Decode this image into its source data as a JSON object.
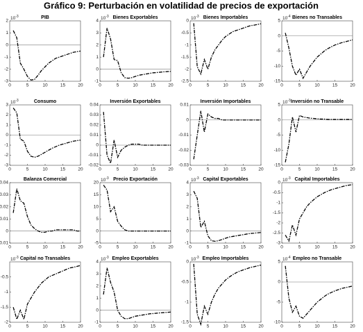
{
  "title": "Gráfico 9: Perturbación en volatilidad de precios de exportación",
  "chart_data": [
    {
      "type": "line",
      "title": "PIB",
      "scale_base": "10",
      "scale_exp": "-3",
      "zero_line": true,
      "color": "#000000",
      "x": [
        1,
        2,
        3,
        4,
        5,
        6,
        7,
        8,
        9,
        10,
        11,
        12,
        13,
        14,
        15,
        16,
        17,
        18,
        19,
        20
      ],
      "values": [
        1.2,
        0.6,
        -1.5,
        -2,
        -2.6,
        -2.9,
        -2.85,
        -2.5,
        -2.1,
        -1.8,
        -1.5,
        -1.3,
        -1.1,
        -1,
        -0.9,
        -0.8,
        -0.7,
        -0.6,
        -0.55,
        -0.5
      ],
      "xlim": [
        0,
        20
      ],
      "xticks": [
        0,
        5,
        10,
        15,
        20
      ],
      "ylim": [
        -3,
        2
      ],
      "yticks": [
        -3,
        -2,
        -1,
        0,
        1,
        2
      ]
    },
    {
      "type": "line",
      "title": "Bienes Exportables",
      "scale_base": "10",
      "scale_exp": "-3",
      "zero_line": true,
      "color": "#000000",
      "x": [
        1,
        2,
        3,
        4,
        5,
        6,
        7,
        8,
        9,
        10,
        11,
        12,
        13,
        14,
        15,
        16,
        17,
        18,
        19,
        20
      ],
      "values": [
        1,
        3.4,
        2.5,
        0.8,
        0.7,
        -0.3,
        -0.7,
        -0.75,
        -0.7,
        -0.6,
        -0.5,
        -0.45,
        -0.4,
        -0.35,
        -0.3,
        -0.28,
        -0.25,
        -0.22,
        -0.2,
        -0.18
      ],
      "xlim": [
        0,
        20
      ],
      "xticks": [
        0,
        5,
        10,
        15,
        20
      ],
      "ylim": [
        -1,
        4
      ],
      "yticks": [
        -1,
        0,
        1,
        2,
        3,
        4
      ]
    },
    {
      "type": "line",
      "title": "Bienes Importables",
      "scale_base": "10",
      "scale_exp": "-3",
      "zero_line": true,
      "color": "#000000",
      "x": [
        1,
        2,
        3,
        4,
        5,
        6,
        7,
        8,
        9,
        10,
        11,
        12,
        13,
        14,
        15,
        16,
        17,
        18,
        19,
        20
      ],
      "values": [
        -0.1,
        -1.9,
        -2.2,
        -1.6,
        -2,
        -1.5,
        -1.2,
        -1,
        -0.8,
        -0.65,
        -0.55,
        -0.45,
        -0.4,
        -0.35,
        -0.3,
        -0.25,
        -0.2,
        -0.18,
        -0.15,
        -0.12
      ],
      "xlim": [
        0,
        20
      ],
      "xticks": [
        0,
        5,
        10,
        15,
        20
      ],
      "ylim": [
        -2.5,
        0
      ],
      "yticks": [
        -2.5,
        -2,
        -1.5,
        -1,
        -0.5,
        0
      ]
    },
    {
      "type": "line",
      "title": "Bienes no Transables",
      "scale_base": "10",
      "scale_exp": "-4",
      "zero_line": true,
      "color": "#000000",
      "x": [
        1,
        2,
        3,
        4,
        5,
        6,
        7,
        8,
        9,
        10,
        11,
        12,
        13,
        14,
        15,
        16,
        17,
        18,
        19,
        20
      ],
      "values": [
        1,
        -4,
        -10,
        -13,
        -11,
        -14,
        -12,
        -10,
        -8.5,
        -7,
        -6,
        -5,
        -4.2,
        -3.6,
        -3,
        -2.6,
        -2.2,
        -1.9,
        -1.6,
        -1.3
      ],
      "xlim": [
        0,
        20
      ],
      "xticks": [
        0,
        5,
        10,
        15,
        20
      ],
      "ylim": [
        -15,
        5
      ],
      "yticks": [
        -15,
        -10,
        -5,
        0,
        5
      ]
    },
    {
      "type": "line",
      "title": "Consumo",
      "scale_base": "10",
      "scale_exp": "-3",
      "zero_line": true,
      "color": "#000000",
      "x": [
        1,
        2,
        3,
        4,
        5,
        6,
        7,
        8,
        9,
        10,
        11,
        12,
        13,
        14,
        15,
        16,
        17,
        18,
        19,
        20
      ],
      "values": [
        2.7,
        2.2,
        -0.4,
        -0.6,
        -1.6,
        -2.1,
        -2.2,
        -2.1,
        -1.9,
        -1.7,
        -1.5,
        -1.3,
        -1.15,
        -1,
        -0.9,
        -0.8,
        -0.7,
        -0.6,
        -0.55,
        -0.5
      ],
      "xlim": [
        0,
        20
      ],
      "xticks": [
        0,
        5,
        10,
        15,
        20
      ],
      "ylim": [
        -3,
        3
      ],
      "yticks": [
        -3,
        -2,
        -1,
        0,
        1,
        2,
        3
      ]
    },
    {
      "type": "line",
      "title": "Inversión Exportables",
      "zero_line": true,
      "color": "#000000",
      "x": [
        1,
        2,
        3,
        4,
        5,
        6,
        7,
        8,
        9,
        10,
        11,
        12,
        13,
        14,
        15,
        16,
        17,
        18,
        19,
        20
      ],
      "values": [
        0.033,
        -0.01,
        -0.018,
        0.005,
        -0.012,
        -0.005,
        -0.002,
        0,
        0.001,
        0.001,
        0.001,
        0,
        0,
        0,
        0,
        0,
        0,
        0,
        0,
        0
      ],
      "xlim": [
        0,
        20
      ],
      "xticks": [
        0,
        5,
        10,
        15,
        20
      ],
      "ylim": [
        -0.02,
        0.04
      ],
      "yticks": [
        -0.02,
        -0.01,
        0,
        0.01,
        0.02,
        0.03,
        0.04
      ]
    },
    {
      "type": "line",
      "title": "Inversión Importables",
      "zero_line": true,
      "color": "#000000",
      "x": [
        1,
        2,
        3,
        4,
        5,
        6,
        7,
        8,
        9,
        10,
        11,
        12,
        13,
        14,
        15,
        16,
        17,
        18,
        19,
        20
      ],
      "values": [
        -0.026,
        -0.01,
        0.006,
        -0.008,
        0.004,
        0.002,
        0.001,
        0.001,
        0,
        0,
        0,
        0,
        0,
        0,
        0,
        0,
        0,
        0,
        0,
        0
      ],
      "xlim": [
        0,
        20
      ],
      "xticks": [
        0,
        5,
        10,
        15,
        20
      ],
      "ylim": [
        -0.03,
        0.01
      ],
      "yticks": [
        -0.03,
        -0.02,
        -0.01,
        0,
        0.01
      ]
    },
    {
      "type": "line",
      "title": "Inversión no Transable",
      "scale_base": "10",
      "scale_exp": "-3",
      "zero_line": true,
      "color": "#000000",
      "x": [
        1,
        2,
        3,
        4,
        5,
        6,
        7,
        8,
        9,
        10,
        11,
        12,
        13,
        14,
        15,
        16,
        17,
        18,
        19,
        20
      ],
      "values": [
        -14,
        -8,
        1,
        -4,
        1.5,
        1,
        0.8,
        0.6,
        0.5,
        0.4,
        0.3,
        0.3,
        0.2,
        0.2,
        0.2,
        0.2,
        0.2,
        0.2,
        0.2,
        0.2
      ],
      "xlim": [
        0,
        20
      ],
      "xticks": [
        0,
        5,
        10,
        15,
        20
      ],
      "ylim": [
        -15,
        5
      ],
      "yticks": [
        -15,
        -10,
        -5,
        0,
        5
      ]
    },
    {
      "type": "line",
      "title": "Balanza Comercial",
      "zero_line": true,
      "color": "#000000",
      "x": [
        1,
        2,
        3,
        4,
        5,
        6,
        7,
        8,
        9,
        10,
        11,
        12,
        13,
        14,
        15,
        16,
        17,
        18,
        19,
        20
      ],
      "values": [
        0.015,
        0.035,
        0.025,
        0.023,
        0.012,
        0.005,
        0.002,
        0,
        -0.001,
        -0.001,
        0,
        0,
        0.001,
        0.001,
        0.001,
        0.001,
        0.001,
        0.001,
        0,
        0
      ],
      "xlim": [
        0,
        20
      ],
      "xticks": [
        0,
        5,
        10,
        15,
        20
      ],
      "ylim": [
        -0.01,
        0.04
      ],
      "yticks": [
        -0.01,
        0,
        0.01,
        0.02,
        0.03,
        0.04
      ]
    },
    {
      "type": "line",
      "title": "Precio Exportación",
      "scale_base": "10",
      "scale_exp": "-3",
      "zero_line": true,
      "color": "#000000",
      "x": [
        1,
        2,
        3,
        4,
        5,
        6,
        7,
        8,
        9,
        10,
        11,
        12,
        13,
        14,
        15,
        16,
        17,
        18,
        19,
        20
      ],
      "values": [
        19,
        17,
        8,
        10,
        4,
        2,
        0.5,
        0,
        0,
        0,
        0,
        0,
        0,
        0,
        0,
        0,
        0,
        0,
        0,
        0
      ],
      "xlim": [
        0,
        20
      ],
      "xticks": [
        0,
        5,
        10,
        15,
        20
      ],
      "ylim": [
        -5,
        20
      ],
      "yticks": [
        -5,
        0,
        5,
        10,
        15,
        20
      ]
    },
    {
      "type": "line",
      "title": "Capital Exportables",
      "scale_base": "10",
      "scale_exp": "-3",
      "zero_line": true,
      "color": "#000000",
      "x": [
        1,
        2,
        3,
        4,
        5,
        6,
        7,
        8,
        9,
        10,
        11,
        12,
        13,
        14,
        15,
        16,
        17,
        18,
        19,
        20
      ],
      "values": [
        3.3,
        2.7,
        0.3,
        0.8,
        -0.4,
        -0.8,
        -0.85,
        -0.8,
        -0.7,
        -0.6,
        -0.5,
        -0.45,
        -0.4,
        -0.35,
        -0.3,
        -0.25,
        -0.2,
        -0.18,
        -0.15,
        -0.12
      ],
      "xlim": [
        0,
        20
      ],
      "xticks": [
        0,
        5,
        10,
        15,
        20
      ],
      "ylim": [
        -1,
        4
      ],
      "yticks": [
        -1,
        0,
        1,
        2,
        3,
        4
      ]
    },
    {
      "type": "line",
      "title": "Capital Importables",
      "scale_base": "10",
      "scale_exp": "-3",
      "zero_line": true,
      "color": "#000000",
      "x": [
        1,
        2,
        3,
        4,
        5,
        6,
        7,
        8,
        9,
        10,
        11,
        12,
        13,
        14,
        15,
        16,
        17,
        18,
        19,
        20
      ],
      "values": [
        -2.6,
        -2.9,
        -2.1,
        -2.6,
        -1.8,
        -1.5,
        -1.2,
        -1,
        -0.85,
        -0.7,
        -0.6,
        -0.5,
        -0.42,
        -0.35,
        -0.3,
        -0.25,
        -0.2,
        -0.15,
        -0.12,
        -0.1
      ],
      "xlim": [
        0,
        20
      ],
      "xticks": [
        0,
        5,
        10,
        15,
        20
      ],
      "ylim": [
        -3,
        0
      ],
      "yticks": [
        -3,
        -2.5,
        -2,
        -1.5,
        -1,
        -0.5,
        0
      ]
    },
    {
      "type": "line",
      "title": "Capital no Transables",
      "scale_base": "10",
      "scale_exp": "-3",
      "zero_line": false,
      "color": "#000000",
      "x": [
        1,
        2,
        3,
        4,
        5,
        6,
        7,
        8,
        9,
        10,
        11,
        12,
        13,
        14,
        15,
        16,
        17,
        18,
        19,
        20
      ],
      "values": [
        -1.5,
        -1.9,
        -1.6,
        -1.9,
        -1.4,
        -1.2,
        -1,
        -0.85,
        -0.7,
        -0.6,
        -0.5,
        -0.45,
        -0.4,
        -0.35,
        -0.3,
        -0.25,
        -0.2,
        -0.18,
        -0.15,
        -0.12
      ],
      "xlim": [
        0,
        20
      ],
      "xticks": [
        0,
        5,
        10,
        15,
        20
      ],
      "ylim": [
        -2,
        0
      ],
      "yticks": [
        -2,
        -1.5,
        -1,
        -0.5
      ]
    },
    {
      "type": "line",
      "title": "Empleo Exportables",
      "scale_base": "10",
      "scale_exp": "-3",
      "zero_line": true,
      "color": "#000000",
      "x": [
        1,
        2,
        3,
        4,
        5,
        6,
        7,
        8,
        9,
        10,
        11,
        12,
        13,
        14,
        15,
        16,
        17,
        18,
        19,
        20
      ],
      "values": [
        1.3,
        3.5,
        2.3,
        1.5,
        0,
        -0.5,
        -0.7,
        -0.7,
        -0.6,
        -0.5,
        -0.45,
        -0.4,
        -0.35,
        -0.3,
        -0.28,
        -0.25,
        -0.22,
        -0.2,
        -0.18,
        -0.15
      ],
      "xlim": [
        0,
        20
      ],
      "xticks": [
        0,
        5,
        10,
        15,
        20
      ],
      "ylim": [
        -1,
        4
      ],
      "yticks": [
        -1,
        0,
        1,
        2,
        3,
        4
      ]
    },
    {
      "type": "line",
      "title": "Empleo Importables",
      "scale_base": "10",
      "scale_exp": "-3",
      "zero_line": true,
      "color": "#000000",
      "x": [
        1,
        2,
        3,
        4,
        5,
        6,
        7,
        8,
        9,
        10,
        11,
        12,
        13,
        14,
        15,
        16,
        17,
        18,
        19,
        20
      ],
      "values": [
        -0.05,
        -1.3,
        -1.55,
        -1.1,
        -1.3,
        -1,
        -0.8,
        -0.65,
        -0.55,
        -0.45,
        -0.38,
        -0.32,
        -0.27,
        -0.23,
        -0.2,
        -0.17,
        -0.14,
        -0.12,
        -0.1,
        -0.08
      ],
      "xlim": [
        0,
        20
      ],
      "xticks": [
        0,
        5,
        10,
        15,
        20
      ],
      "ylim": [
        -1.5,
        0
      ],
      "yticks": [
        -1.5,
        -1,
        -0.5,
        0
      ]
    },
    {
      "type": "line",
      "title": "Empleo no Transable",
      "scale_base": "10",
      "scale_exp": "-4",
      "zero_line": true,
      "color": "#000000",
      "x": [
        1,
        2,
        3,
        4,
        5,
        6,
        7,
        8,
        9,
        10,
        11,
        12,
        13,
        14,
        15,
        16,
        17,
        18,
        19,
        20
      ],
      "values": [
        4,
        -4,
        -7.5,
        -6,
        -8.5,
        -9,
        -8,
        -7,
        -6,
        -5,
        -4.3,
        -3.6,
        -3,
        -2.6,
        -2.2,
        -1.9,
        -1.6,
        -1.4,
        -1.2,
        -1
      ],
      "xlim": [
        0,
        20
      ],
      "xticks": [
        0,
        5,
        10,
        15,
        20
      ],
      "ylim": [
        -10,
        5
      ],
      "yticks": [
        -10,
        -5,
        0,
        5
      ]
    }
  ]
}
